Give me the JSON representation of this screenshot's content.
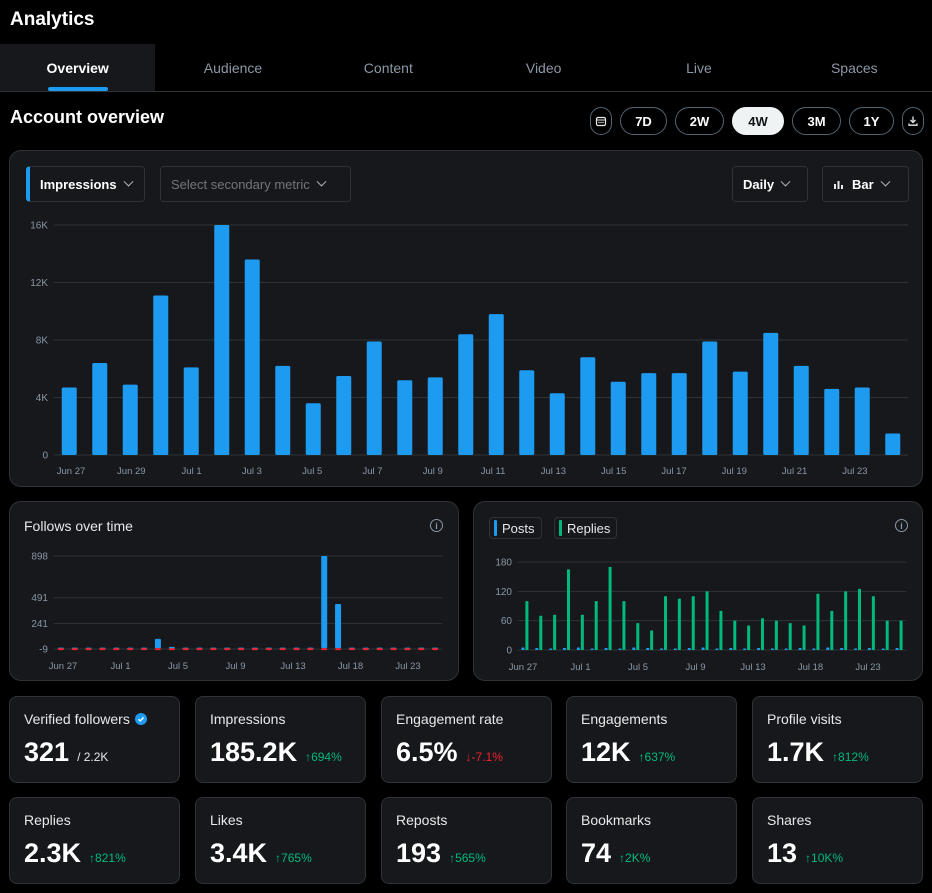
{
  "app": {
    "title": "Analytics"
  },
  "tabs": [
    {
      "label": "Overview",
      "active": true
    },
    {
      "label": "Audience"
    },
    {
      "label": "Content"
    },
    {
      "label": "Video"
    },
    {
      "label": "Live"
    },
    {
      "label": "Spaces"
    }
  ],
  "overview": {
    "title": "Account overview"
  },
  "range": {
    "options": [
      "7D",
      "2W",
      "4W",
      "3M",
      "1Y"
    ],
    "selected": "4W"
  },
  "main_chart": {
    "primary_metric": "Impressions",
    "secondary_placeholder": "Select secondary metric",
    "granularity": "Daily",
    "chart_style": "Bar"
  },
  "follows_card": {
    "title": "Follows over time"
  },
  "posts_card": {
    "legend": [
      "Posts",
      "Replies"
    ]
  },
  "stats": [
    {
      "label": "Verified followers",
      "value": "321",
      "sub": "/ 2.2K",
      "verified": true
    },
    {
      "label": "Impressions",
      "value": "185.2K",
      "change": "694%",
      "dir": "up"
    },
    {
      "label": "Engagement rate",
      "value": "6.5%",
      "change": "-7.1%",
      "dir": "down"
    },
    {
      "label": "Engagements",
      "value": "12K",
      "change": "637%",
      "dir": "up"
    },
    {
      "label": "Profile visits",
      "value": "1.7K",
      "change": "812%",
      "dir": "up"
    },
    {
      "label": "Replies",
      "value": "2.3K",
      "change": "821%",
      "dir": "up"
    },
    {
      "label": "Likes",
      "value": "3.4K",
      "change": "765%",
      "dir": "up"
    },
    {
      "label": "Reposts",
      "value": "193",
      "change": "565%",
      "dir": "up"
    },
    {
      "label": "Bookmarks",
      "value": "74",
      "change": "2K%",
      "dir": "up"
    },
    {
      "label": "Shares",
      "value": "13",
      "change": "10K%",
      "dir": "up"
    }
  ],
  "colors": {
    "accent": "#1d9bf0",
    "positive": "#00ba7c",
    "negative": "#f4212e",
    "background": "#000000",
    "card": "#16181c"
  },
  "icons": {
    "calendar": "calendar-icon",
    "download": "download-icon",
    "bar_chart": "bar-chart-icon",
    "info": "info-icon",
    "verified": "verified-badge-icon",
    "arrow_up": "arrow-up-icon",
    "arrow_down": "arrow-down-icon"
  },
  "chart_data": [
    {
      "type": "bar",
      "title": "",
      "ylim": [
        0,
        16000
      ],
      "yticks": [
        "0",
        "4K",
        "8K",
        "12K",
        "16K"
      ],
      "xtick_labels": [
        "Jun 27",
        "Jun 29",
        "Jul 1",
        "Jul 3",
        "Jul 5",
        "Jul 7",
        "Jul 9",
        "Jul 11",
        "Jul 13",
        "Jul 15",
        "Jul 17",
        "Jul 19",
        "Jul 21",
        "Jul 23"
      ],
      "categories": [
        "Jun 27",
        "Jun 28",
        "Jun 29",
        "Jun 30",
        "Jul 1",
        "Jul 2",
        "Jul 3",
        "Jul 4",
        "Jul 5",
        "Jul 6",
        "Jul 7",
        "Jul 8",
        "Jul 9",
        "Jul 10",
        "Jul 11",
        "Jul 12",
        "Jul 13",
        "Jul 14",
        "Jul 15",
        "Jul 16",
        "Jul 17",
        "Jul 18",
        "Jul 19",
        "Jul 20",
        "Jul 21",
        "Jul 22",
        "Jul 23",
        "Jul 24"
      ],
      "series": [
        {
          "name": "Impressions",
          "color": "#1d9bf0",
          "values": [
            4700,
            6400,
            4900,
            11100,
            6100,
            16000,
            13600,
            6200,
            3600,
            5500,
            7900,
            5200,
            5400,
            8400,
            9800,
            5900,
            4300,
            6800,
            5100,
            5700,
            5700,
            7900,
            5800,
            8500,
            6200,
            4600,
            4700,
            1500
          ]
        }
      ]
    },
    {
      "type": "bar",
      "title": "Follows over time",
      "ylim": [
        -9,
        898
      ],
      "yticks": [
        "-9",
        "241",
        "491",
        "898"
      ],
      "xtick_labels": [
        "Jun 27",
        "Jul 1",
        "Jul 5",
        "Jul 9",
        "Jul 13",
        "Jul 18",
        "Jul 23"
      ],
      "series": [
        {
          "name": "",
          "color": "#1d9bf0",
          "values": [
            5,
            5,
            5,
            5,
            5,
            5,
            5,
            90,
            12,
            5,
            5,
            5,
            5,
            5,
            5,
            5,
            5,
            5,
            5,
            898,
            430,
            5,
            5,
            5,
            5,
            5,
            5,
            5
          ]
        },
        {
          "name": "",
          "color": "#f4212e",
          "values": [
            -9,
            -9,
            -9,
            -9,
            -9,
            -9,
            -9,
            -9,
            -9,
            -9,
            -9,
            -9,
            -9,
            -9,
            -9,
            -9,
            -9,
            -9,
            -9,
            -9,
            -9,
            -9,
            -9,
            -9,
            -9,
            -9,
            -9,
            -9
          ]
        }
      ]
    },
    {
      "type": "bar",
      "title": "",
      "ylim": [
        0,
        180
      ],
      "yticks": [
        "0",
        "60",
        "120",
        "180"
      ],
      "xtick_labels": [
        "Jun 27",
        "Jul 1",
        "Jul 5",
        "Jul 9",
        "Jul 13",
        "Jul 18",
        "Jul 23"
      ],
      "series": [
        {
          "name": "Posts",
          "color": "#1d9bf0",
          "values": [
            5,
            4,
            3,
            4,
            5,
            3,
            4,
            3,
            5,
            4,
            3,
            3,
            4,
            5,
            3,
            4,
            3,
            4,
            3,
            3,
            4,
            3,
            5,
            4,
            3,
            4,
            3,
            4
          ]
        },
        {
          "name": "Replies",
          "color": "#00ba7c",
          "values": [
            100,
            70,
            72,
            165,
            72,
            100,
            170,
            100,
            55,
            40,
            110,
            105,
            110,
            120,
            80,
            60,
            50,
            65,
            60,
            55,
            50,
            115,
            80,
            120,
            125,
            110,
            60,
            60
          ]
        }
      ]
    }
  ]
}
